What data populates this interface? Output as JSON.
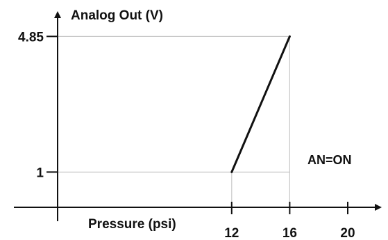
{
  "chart_data": {
    "type": "line",
    "title": "",
    "ylabel": "Analog Out (V)",
    "xlabel": "Pressure (psi)",
    "annotation": "AN=ON",
    "x_ticks": [
      {
        "value": 12,
        "label": "12"
      },
      {
        "value": 16,
        "label": "16"
      },
      {
        "value": 20,
        "label": "20"
      }
    ],
    "y_ticks": [
      {
        "value": 1,
        "label": "1"
      },
      {
        "value": 4.85,
        "label": "4.85"
      }
    ],
    "xlim": [
      0,
      22
    ],
    "ylim": [
      0,
      5.5
    ],
    "grid": false,
    "series": [
      {
        "x": [
          12,
          16
        ],
        "y": [
          1,
          4.85
        ]
      }
    ],
    "colors": {
      "line": "#111111",
      "axis": "#111111",
      "guide": "#c8c8c8"
    }
  }
}
